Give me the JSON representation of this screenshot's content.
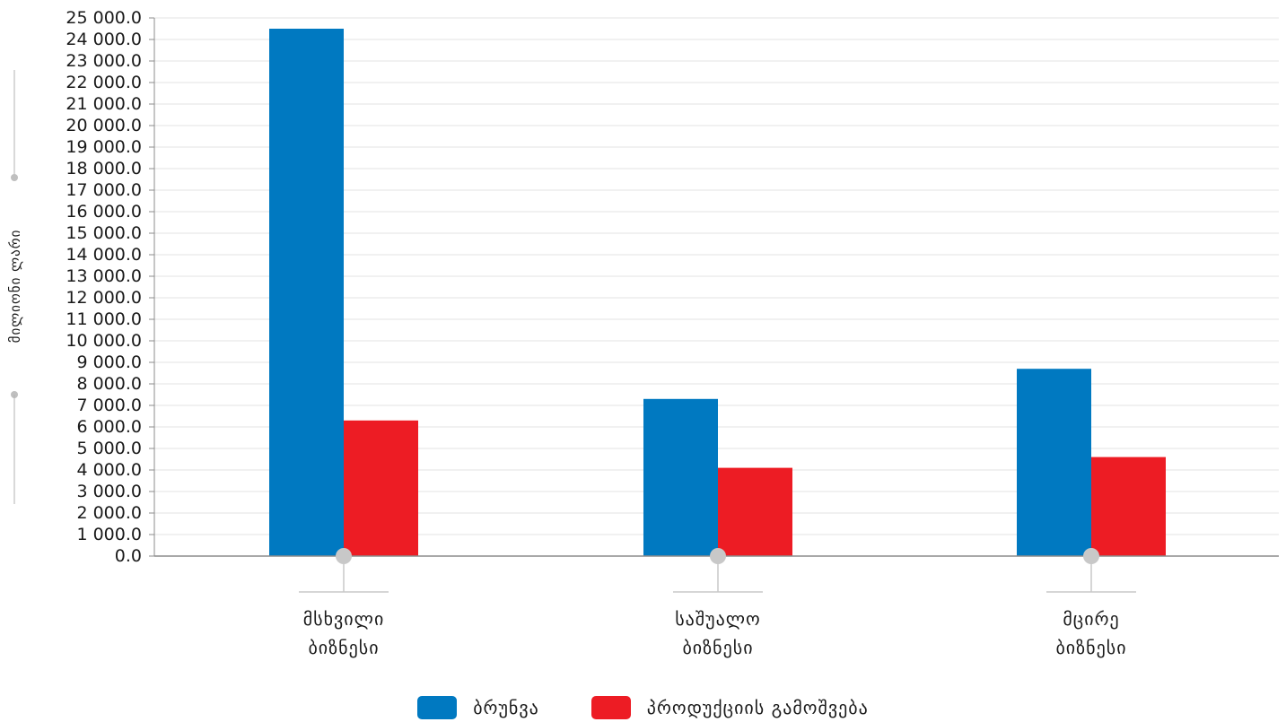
{
  "chart_data": {
    "type": "bar",
    "title": "",
    "ylabel": "მილიონი ლარი",
    "xlabel": "",
    "ylim": [
      0,
      25000
    ],
    "ytick_step": 1000,
    "yticks": [
      "0.0",
      "1 000.0",
      "2 000.0",
      "3 000.0",
      "4 000.0",
      "5 000.0",
      "6 000.0",
      "7 000.0",
      "8 000.0",
      "9 000.0",
      "10 000.0",
      "11 000.0",
      "12 000.0",
      "13 000.0",
      "14 000.0",
      "15 000.0",
      "16 000.0",
      "17 000.0",
      "18 000.0",
      "19 000.0",
      "20 000.0",
      "21 000.0",
      "22 000.0",
      "23 000.0",
      "24 000.0",
      "25 000.0"
    ],
    "categories": [
      {
        "line1": "მსხვილი",
        "line2": "ბიზნესი"
      },
      {
        "line1": "საშუალო",
        "line2": "ბიზნესი"
      },
      {
        "line1": "მცირე",
        "line2": "ბიზნესი"
      }
    ],
    "series": [
      {
        "name": "ბრუნვა",
        "color": "#0079c1",
        "values": [
          24500,
          7300,
          8700
        ]
      },
      {
        "name": "პროდუქციის გამოშვება",
        "color": "#ed1c24",
        "values": [
          6300,
          4100,
          4600
        ]
      }
    ],
    "grid": true,
    "legend_position": "bottom-center"
  }
}
